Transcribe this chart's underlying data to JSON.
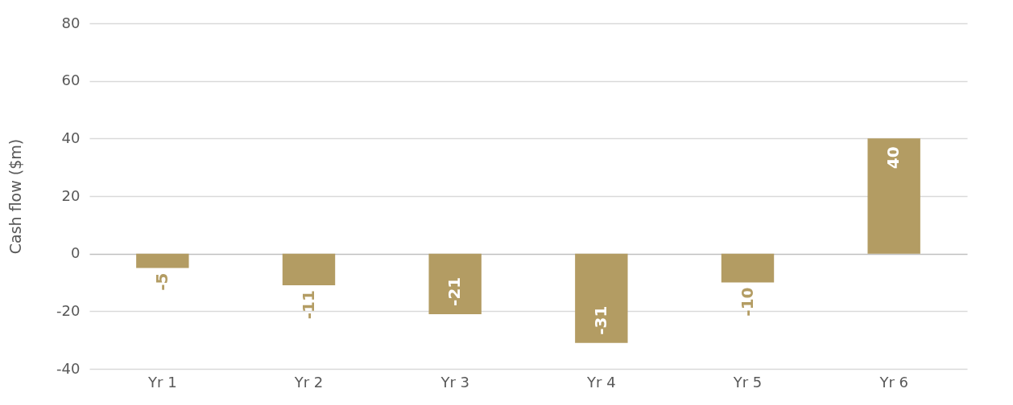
{
  "chart_data": {
    "type": "bar",
    "ylabel": "Cash flow ($m)",
    "categories": [
      "Yr 1",
      "Yr 2",
      "Yr 3",
      "Yr 4",
      "Yr 5",
      "Yr 6"
    ],
    "values": [
      -5,
      -11,
      -21,
      -31,
      -10,
      40
    ],
    "color": "#b39c63",
    "ylim": [
      -40,
      80
    ],
    "yticks": [
      -40,
      -20,
      0,
      20,
      40,
      60,
      80
    ],
    "grid": "y",
    "data_labels": true
  }
}
